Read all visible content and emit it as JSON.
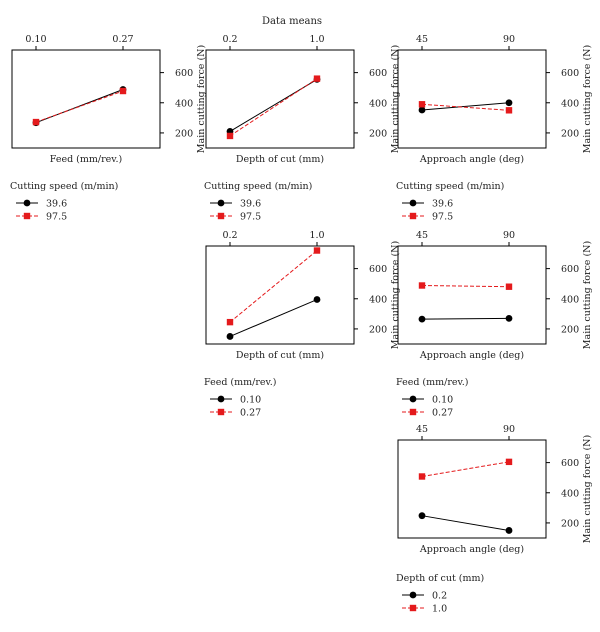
{
  "title": "Data means",
  "ylabel": "Main cutting force (N)",
  "chart_data": [
    {
      "type": "line",
      "row": 0,
      "col": 0,
      "x": [
        "0.10",
        "0.27"
      ],
      "xlabel": "Feed (mm/rev.)",
      "ylabel": "Main cutting force (N)",
      "ylim": [
        100,
        750
      ],
      "yticks": [
        "200",
        "400",
        "600"
      ],
      "xtick_position": "top",
      "ytick_position": "right",
      "series": [
        {
          "name": "39.6",
          "values": [
            268,
            488
          ],
          "color": "#000000",
          "marker": "circle",
          "line": "solid"
        },
        {
          "name": "97.5",
          "values": [
            272,
            478
          ],
          "color": "#e41a1c",
          "marker": "square",
          "line": "dashed"
        }
      ]
    },
    {
      "type": "line",
      "row": 0,
      "col": 1,
      "x": [
        "0.2",
        "1.0"
      ],
      "xlabel": "Depth of cut (mm)",
      "ylabel": "Main cutting force (N)",
      "ylim": [
        100,
        750
      ],
      "yticks": [
        "200",
        "400",
        "600"
      ],
      "xtick_position": "top",
      "ytick_position": "right",
      "series": [
        {
          "name": "39.6",
          "values": [
            210,
            555
          ],
          "color": "#000000",
          "marker": "circle",
          "line": "solid"
        },
        {
          "name": "97.5",
          "values": [
            180,
            560
          ],
          "color": "#e41a1c",
          "marker": "square",
          "line": "dashed"
        }
      ]
    },
    {
      "type": "line",
      "row": 0,
      "col": 2,
      "x": [
        "45",
        "90"
      ],
      "xlabel": "Approach angle (deg)",
      "ylabel": "Main cutting force (N)",
      "ylim": [
        100,
        750
      ],
      "yticks": [
        "200",
        "400",
        "600"
      ],
      "xtick_position": "top",
      "ytick_position": "right",
      "series": [
        {
          "name": "39.6",
          "values": [
            352,
            400
          ],
          "color": "#000000",
          "marker": "circle",
          "line": "solid"
        },
        {
          "name": "97.5",
          "values": [
            390,
            350
          ],
          "color": "#e41a1c",
          "marker": "square",
          "line": "dashed"
        }
      ]
    },
    {
      "type": "line",
      "row": 1,
      "col": 1,
      "x": [
        "0.2",
        "1.0"
      ],
      "xlabel": "Depth of cut (mm)",
      "ylabel": "Main cutting force (N)",
      "ylim": [
        100,
        750
      ],
      "yticks": [
        "200",
        "400",
        "600"
      ],
      "xtick_position": "top",
      "ytick_position": "right",
      "series": [
        {
          "name": "0.10",
          "values": [
            150,
            395
          ],
          "color": "#000000",
          "marker": "circle",
          "line": "solid"
        },
        {
          "name": "0.27",
          "values": [
            245,
            720
          ],
          "color": "#e41a1c",
          "marker": "square",
          "line": "dashed"
        }
      ]
    },
    {
      "type": "line",
      "row": 1,
      "col": 2,
      "x": [
        "45",
        "90"
      ],
      "xlabel": "Approach angle (deg)",
      "ylabel": "Main cutting force (N)",
      "ylim": [
        100,
        750
      ],
      "yticks": [
        "200",
        "400",
        "600"
      ],
      "xtick_position": "top",
      "ytick_position": "right",
      "series": [
        {
          "name": "0.10",
          "values": [
            265,
            270
          ],
          "color": "#000000",
          "marker": "circle",
          "line": "solid"
        },
        {
          "name": "0.27",
          "values": [
            488,
            480
          ],
          "color": "#e41a1c",
          "marker": "square",
          "line": "dashed"
        }
      ]
    },
    {
      "type": "line",
      "row": 2,
      "col": 2,
      "x": [
        "45",
        "90"
      ],
      "xlabel": "Approach angle (deg)",
      "ylabel": "Main cutting force (N)",
      "ylim": [
        100,
        750
      ],
      "yticks": [
        "200",
        "400",
        "600"
      ],
      "xtick_position": "top",
      "ytick_position": "right",
      "series": [
        {
          "name": "0.2",
          "values": [
            248,
            150
          ],
          "color": "#000000",
          "marker": "circle",
          "line": "solid"
        },
        {
          "name": "1.0",
          "values": [
            508,
            605
          ],
          "color": "#e41a1c",
          "marker": "square",
          "line": "dashed"
        }
      ]
    }
  ],
  "legends": [
    {
      "title": "Cutting speed (m/min)",
      "col": 0,
      "row": 0,
      "entries": [
        {
          "label": "39.6",
          "color": "#000000",
          "marker": "circle",
          "line": "solid"
        },
        {
          "label": "97.5",
          "color": "#e41a1c",
          "marker": "square",
          "line": "dashed"
        }
      ]
    },
    {
      "title": "Cutting speed (m/min)",
      "col": 1,
      "row": 0,
      "entries": [
        {
          "label": "39.6",
          "color": "#000000",
          "marker": "circle",
          "line": "solid"
        },
        {
          "label": "97.5",
          "color": "#e41a1c",
          "marker": "square",
          "line": "dashed"
        }
      ]
    },
    {
      "title": "Cutting speed (m/min)",
      "col": 2,
      "row": 0,
      "entries": [
        {
          "label": "39.6",
          "color": "#000000",
          "marker": "circle",
          "line": "solid"
        },
        {
          "label": "97.5",
          "color": "#e41a1c",
          "marker": "square",
          "line": "dashed"
        }
      ]
    },
    {
      "title": "Feed (mm/rev.)",
      "col": 1,
      "row": 1,
      "entries": [
        {
          "label": "0.10",
          "color": "#000000",
          "marker": "circle",
          "line": "solid"
        },
        {
          "label": "0.27",
          "color": "#e41a1c",
          "marker": "square",
          "line": "dashed"
        }
      ]
    },
    {
      "title": "Feed (mm/rev.)",
      "col": 2,
      "row": 1,
      "entries": [
        {
          "label": "0.10",
          "color": "#000000",
          "marker": "circle",
          "line": "solid"
        },
        {
          "label": "0.27",
          "color": "#e41a1c",
          "marker": "square",
          "line": "dashed"
        }
      ]
    },
    {
      "title": "Depth of cut (mm)",
      "col": 2,
      "row": 2,
      "entries": [
        {
          "label": "0.2",
          "color": "#000000",
          "marker": "circle",
          "line": "solid"
        },
        {
          "label": "1.0",
          "color": "#e41a1c",
          "marker": "square",
          "line": "dashed"
        }
      ]
    }
  ]
}
